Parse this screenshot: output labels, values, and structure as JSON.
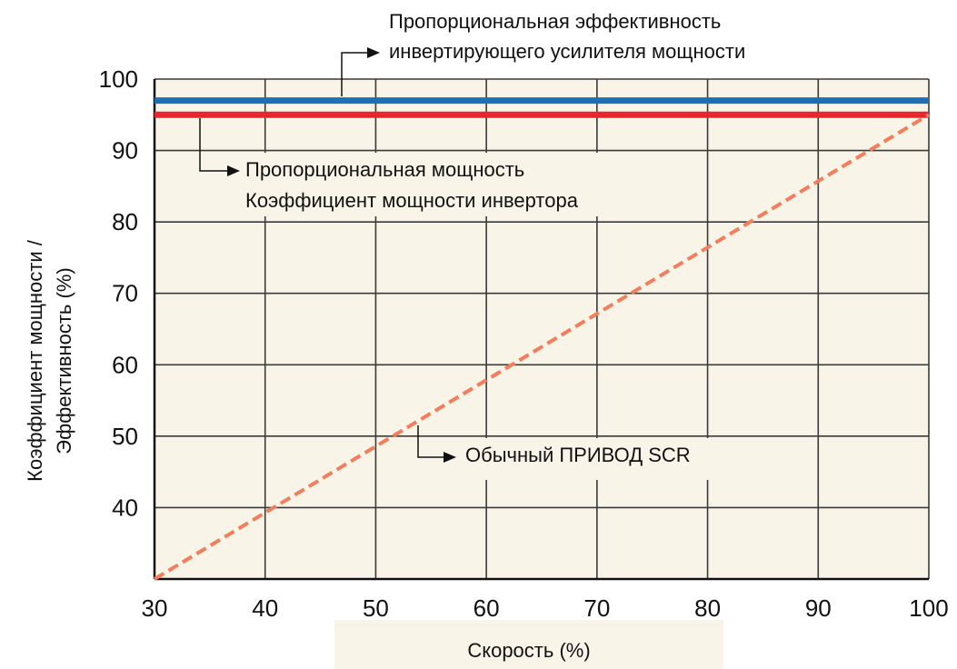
{
  "chart_data": {
    "type": "line",
    "x": [
      30,
      100
    ],
    "xlim": [
      30,
      100
    ],
    "ylim": [
      30,
      100
    ],
    "xticks": [
      "30",
      "40",
      "50",
      "60",
      "70",
      "80",
      "90",
      "100"
    ],
    "yticks": [
      "40",
      "50",
      "60",
      "70",
      "80",
      "90",
      "100"
    ],
    "xlabel": "Скорость (%)",
    "ylabel": [
      "Коэффициент мощности /",
      "Эффективность (%)"
    ],
    "grid": true,
    "series": [
      {
        "name": "Пропорциональная эффективность инвертирующего усилителя мощности",
        "x": [
          30,
          100
        ],
        "y": [
          97,
          97
        ],
        "color": "#1f6fb5"
      },
      {
        "name": "Пропорциональная мощность Коэффициент мощности инвертора",
        "x": [
          30,
          100
        ],
        "y": [
          95,
          95
        ],
        "color": "#e8262d"
      },
      {
        "name": "Обычный ПРИВОД SCR",
        "x": [
          30,
          100
        ],
        "y": [
          30,
          95
        ],
        "color": "#f47d5b"
      }
    ],
    "annotations": {
      "efficiency": [
        "Пропорциональная эффективность",
        "инвертирующего усилителя мощности"
      ],
      "power_factor": [
        "Пропорциональная мощность",
        "Коэффициент мощности инвертора"
      ],
      "scr": "Обычный ПРИВОД SCR"
    },
    "colors": {
      "plot_bg": "#f8f5e8",
      "grid": "#3a3a3a"
    }
  }
}
